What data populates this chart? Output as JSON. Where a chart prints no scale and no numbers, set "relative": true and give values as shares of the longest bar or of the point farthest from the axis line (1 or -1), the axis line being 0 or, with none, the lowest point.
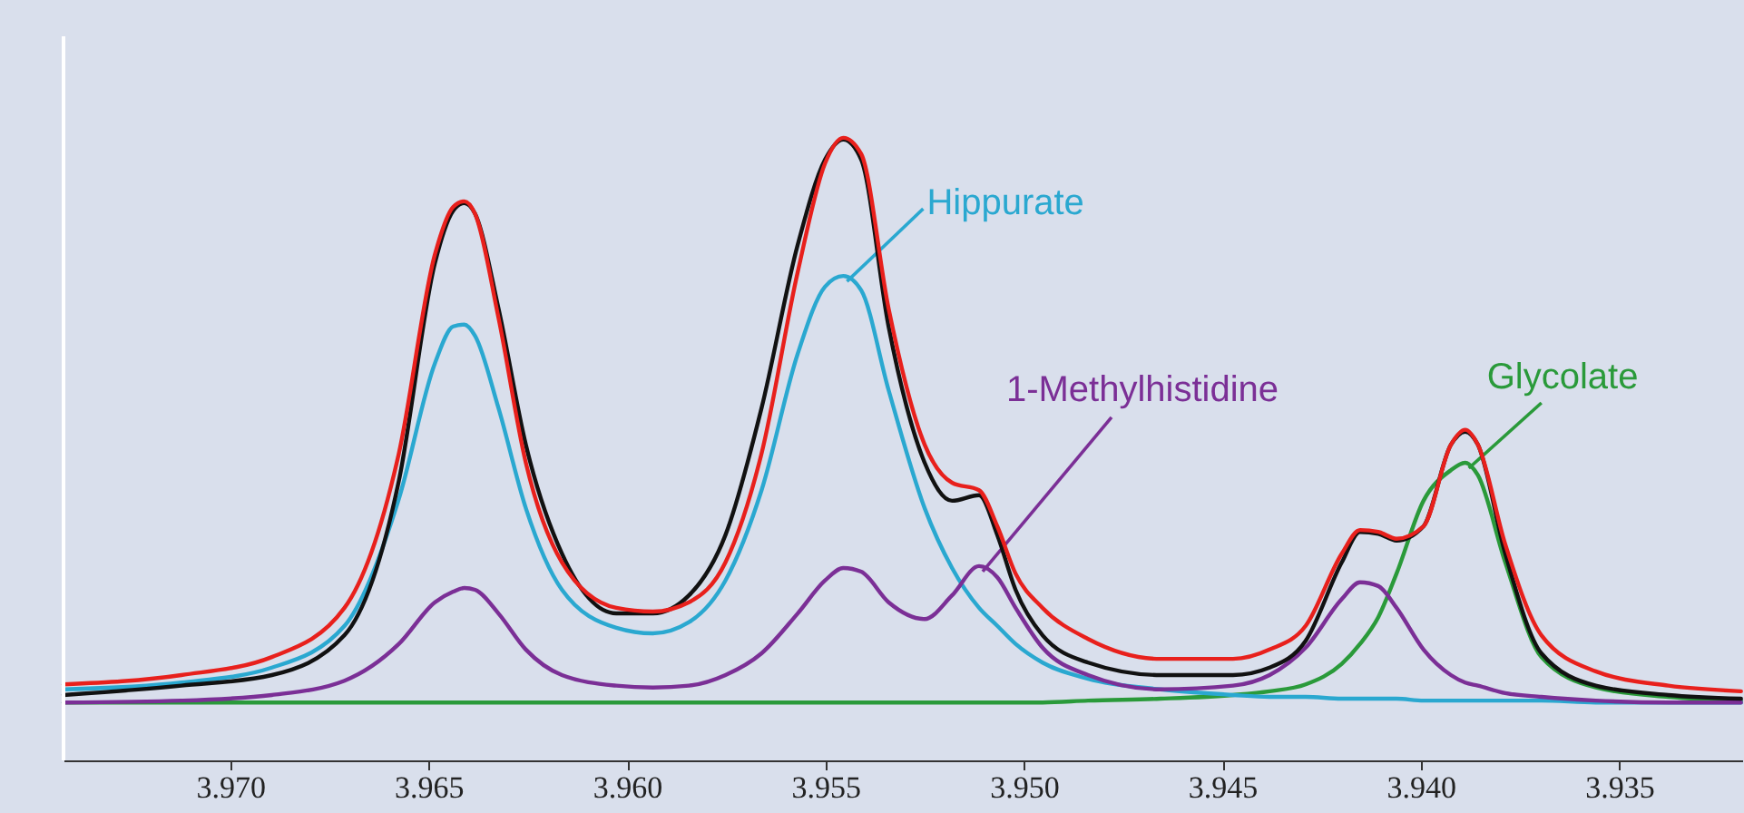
{
  "chart_data": {
    "type": "line",
    "relative": true,
    "x": [
      3.9742,
      3.97123,
      3.96895,
      3.96712,
      3.96575,
      3.96484,
      3.96438,
      3.9641,
      3.96383,
      3.96324,
      3.96255,
      3.96164,
      3.96027,
      3.95935,
      3.95844,
      3.95752,
      3.95661,
      3.9557,
      3.95501,
      3.95455,
      3.9541,
      3.95341,
      3.9525,
      3.95181,
      3.95113,
      3.95067,
      3.95021,
      3.94953,
      3.94838,
      3.94656,
      3.94473,
      3.94381,
      3.9429,
      3.94199,
      3.94153,
      3.94107,
      3.94061,
      3.93993,
      3.93924,
      3.93888,
      3.93856,
      3.93787,
      3.93696,
      3.93559,
      3.93376,
      3.93193
    ],
    "xlim": [
      3.9742,
      3.9319
    ],
    "xticks": [
      {
        "value": 3.97,
        "label": "3.970"
      },
      {
        "value": 3.965,
        "label": "3.965"
      },
      {
        "value": 3.96,
        "label": "3.960"
      },
      {
        "value": 3.955,
        "label": "3.955"
      },
      {
        "value": 3.95,
        "label": "3.950"
      },
      {
        "value": 3.945,
        "label": "3.945"
      },
      {
        "value": 3.94,
        "label": "3.940"
      },
      {
        "value": 3.935,
        "label": "3.935"
      }
    ],
    "series": [
      {
        "name": "Glycolate",
        "color": "#2a9a3a",
        "values": [
          0.093,
          0.093,
          0.093,
          0.093,
          0.093,
          0.093,
          0.093,
          0.093,
          0.093,
          0.093,
          0.093,
          0.093,
          0.093,
          0.093,
          0.093,
          0.093,
          0.093,
          0.093,
          0.093,
          0.093,
          0.093,
          0.093,
          0.093,
          0.093,
          0.093,
          0.093,
          0.093,
          0.093,
          0.096,
          0.099,
          0.105,
          0.111,
          0.122,
          0.155,
          0.187,
          0.23,
          0.3,
          0.417,
          0.466,
          0.478,
          0.458,
          0.318,
          0.166,
          0.117,
          0.102,
          0.096
        ]
      },
      {
        "name": "Hippurate",
        "color": "#2aa8d0",
        "values": [
          0.114,
          0.125,
          0.149,
          0.216,
          0.42,
          0.638,
          0.697,
          0.7,
          0.682,
          0.566,
          0.405,
          0.274,
          0.213,
          0.204,
          0.222,
          0.289,
          0.434,
          0.653,
          0.761,
          0.778,
          0.755,
          0.595,
          0.405,
          0.309,
          0.245,
          0.216,
          0.187,
          0.157,
          0.131,
          0.114,
          0.105,
          0.102,
          0.102,
          0.099,
          0.099,
          0.099,
          0.099,
          0.096,
          0.096,
          0.096,
          0.096,
          0.096,
          0.096,
          0.093,
          0.093,
          0.093
        ]
      },
      {
        "name": "1-Methylhistidine",
        "color": "#7b2f96",
        "values": [
          0.093,
          0.096,
          0.105,
          0.128,
          0.187,
          0.254,
          0.271,
          0.277,
          0.274,
          0.236,
          0.178,
          0.137,
          0.12,
          0.117,
          0.12,
          0.137,
          0.172,
          0.236,
          0.289,
          0.309,
          0.303,
          0.254,
          0.227,
          0.265,
          0.312,
          0.294,
          0.245,
          0.181,
          0.137,
          0.114,
          0.12,
          0.137,
          0.181,
          0.259,
          0.286,
          0.28,
          0.245,
          0.178,
          0.137,
          0.125,
          0.12,
          0.108,
          0.102,
          0.096,
          0.093,
          0.093
        ]
      },
      {
        "color": "#111111",
        "values": [
          0.105,
          0.12,
          0.137,
          0.201,
          0.449,
          0.799,
          0.883,
          0.895,
          0.878,
          0.726,
          0.507,
          0.332,
          0.236,
          0.236,
          0.265,
          0.362,
          0.566,
          0.828,
          0.965,
          0.997,
          0.965,
          0.697,
          0.478,
          0.417,
          0.426,
          0.362,
          0.274,
          0.201,
          0.157,
          0.137,
          0.137,
          0.149,
          0.192,
          0.318,
          0.367,
          0.364,
          0.353,
          0.376,
          0.507,
          0.528,
          0.507,
          0.332,
          0.172,
          0.12,
          0.105,
          0.099
        ]
      },
      {
        "color": "#e8201c",
        "values": [
          0.122,
          0.137,
          0.166,
          0.245,
          0.493,
          0.813,
          0.889,
          0.898,
          0.878,
          0.711,
          0.478,
          0.318,
          0.245,
          0.239,
          0.254,
          0.318,
          0.493,
          0.784,
          0.959,
          1.0,
          0.974,
          0.726,
          0.507,
          0.446,
          0.434,
          0.376,
          0.3,
          0.245,
          0.195,
          0.163,
          0.163,
          0.178,
          0.216,
          0.332,
          0.37,
          0.367,
          0.356,
          0.376,
          0.507,
          0.531,
          0.507,
          0.347,
          0.201,
          0.143,
          0.12,
          0.111
        ]
      }
    ]
  }
}
